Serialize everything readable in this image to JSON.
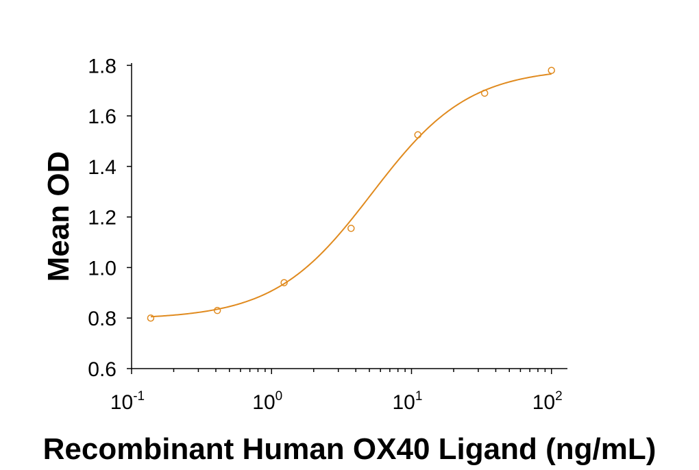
{
  "chart_data": {
    "type": "scatter",
    "xlabel": "Recombinant Human OX40 Ligand (ng/mL)",
    "ylabel": "Mean OD",
    "xscale": "log",
    "xlim": [
      0.1,
      130
    ],
    "ylim": [
      0.6,
      1.82
    ],
    "y_ticks": [
      0.6,
      0.8,
      1.0,
      1.2,
      1.4,
      1.6,
      1.8
    ],
    "y_tick_labels": [
      "0.6",
      "0.8",
      "1.0",
      "1.2",
      "1.4",
      "1.6",
      "1.8"
    ],
    "x_ticks": [
      {
        "base": "10",
        "exp": "-1",
        "value": 0.1
      },
      {
        "base": "10",
        "exp": "0",
        "value": 1
      },
      {
        "base": "10",
        "exp": "1",
        "value": 10
      },
      {
        "base": "10",
        "exp": "2",
        "value": 100
      }
    ],
    "grid": false,
    "color": "#E08A1E",
    "series": [
      {
        "points": [
          {
            "x": 0.137,
            "y": 0.8
          },
          {
            "x": 0.41,
            "y": 0.83
          },
          {
            "x": 1.23,
            "y": 0.94
          },
          {
            "x": 3.7,
            "y": 1.155
          },
          {
            "x": 11.1,
            "y": 1.525
          },
          {
            "x": 33.3,
            "y": 1.69
          },
          {
            "x": 100,
            "y": 1.78
          }
        ],
        "fit": {
          "bottom": 0.795,
          "top": 1.79,
          "ec50": 5.2,
          "hill": 1.25
        }
      }
    ]
  }
}
